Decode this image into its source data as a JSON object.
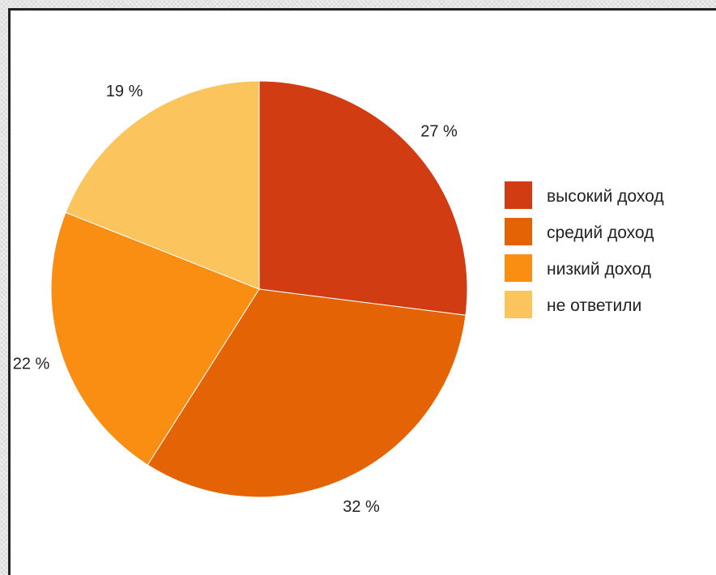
{
  "chart_data": {
    "type": "pie",
    "title": "",
    "categories": [
      "высокий доход",
      "средий доход",
      "низкий доход",
      "не ответили"
    ],
    "values": [
      27,
      32,
      22,
      19
    ],
    "value_labels": [
      "27 %",
      "32 %",
      "22 %",
      "19 %"
    ],
    "colors": [
      "#d23c12",
      "#e36305",
      "#fa8e13",
      "#fcc45c"
    ],
    "start_angle_deg": 0,
    "direction": "clockwise",
    "legend": {
      "placement": "right",
      "entries": [
        "высокий доход",
        "средий доход",
        "низкий доход",
        "не ответили"
      ]
    }
  }
}
